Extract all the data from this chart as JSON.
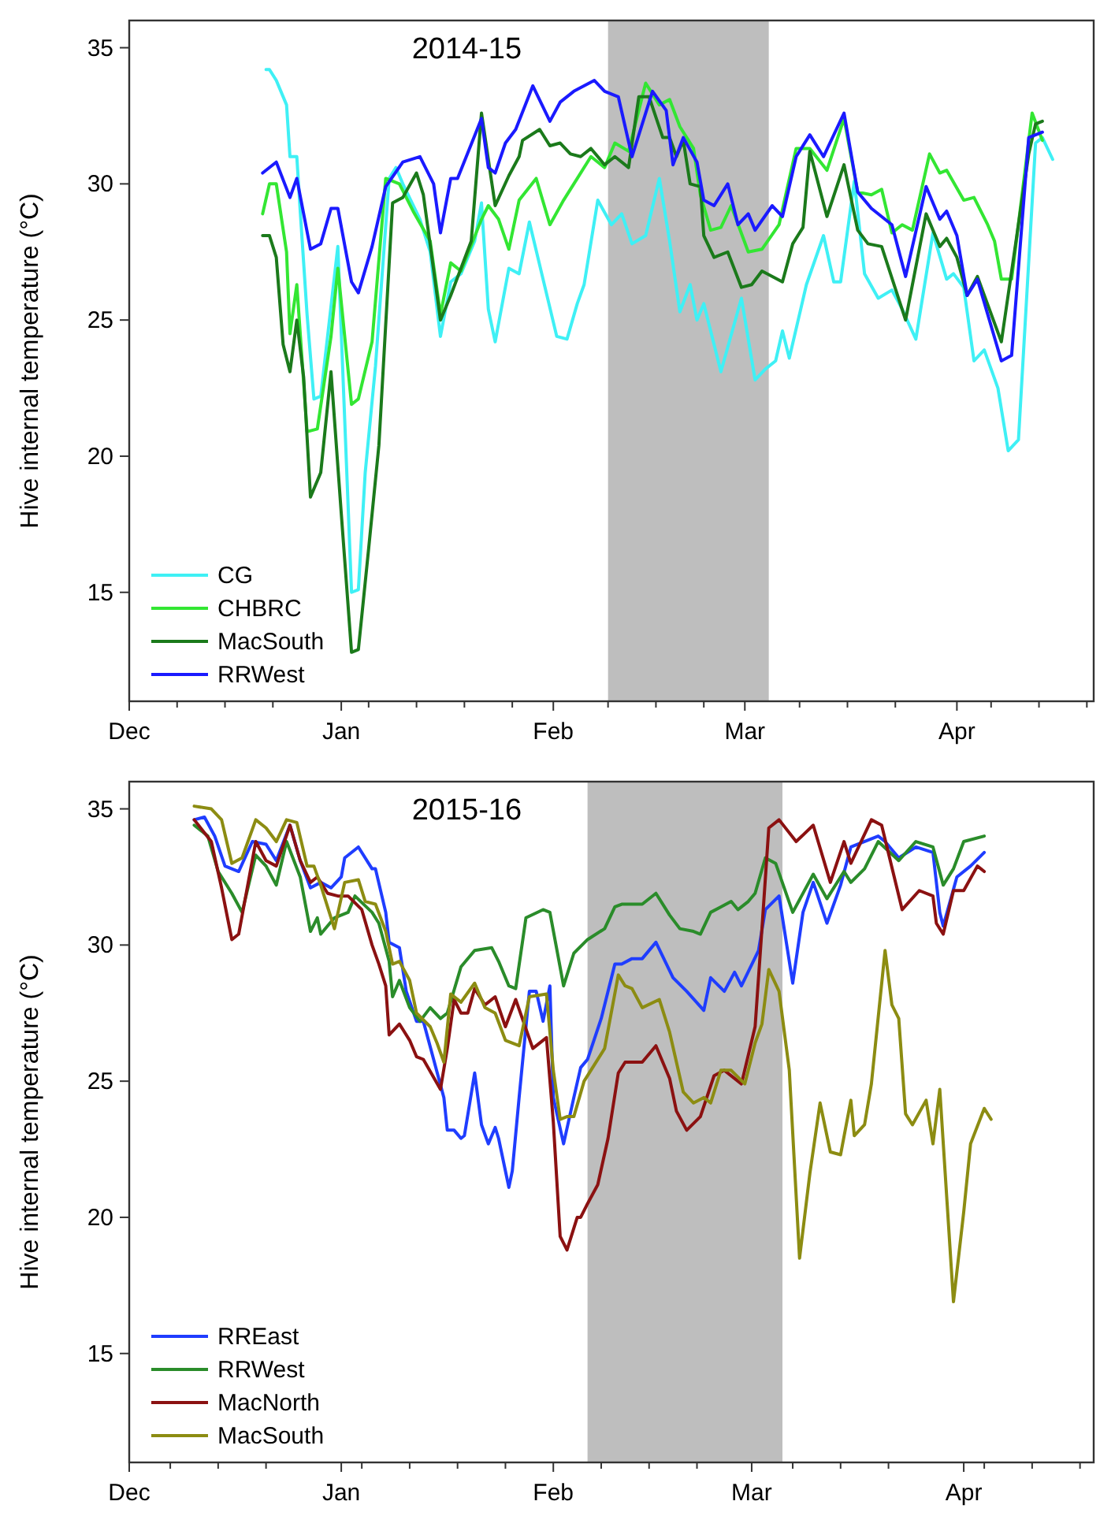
{
  "chart_data": [
    {
      "type": "line",
      "title": "2014-15",
      "ylabel": "Hive internal temperature (°C)",
      "xlim": [
        "2014-12-01",
        "2015-04-21"
      ],
      "ylim": [
        11,
        36
      ],
      "yticks": [
        15,
        20,
        25,
        30,
        35
      ],
      "xticks": [
        {
          "value": "2014-12-01",
          "label": "Dec"
        },
        {
          "value": "2014-12-08",
          "label": null
        },
        {
          "value": "2014-12-15",
          "label": null
        },
        {
          "value": "2014-12-22",
          "label": null
        },
        {
          "value": "2015-01-01",
          "label": "Jan"
        },
        {
          "value": "2015-01-05",
          "label": null
        },
        {
          "value": "2015-01-12",
          "label": null
        },
        {
          "value": "2015-01-19",
          "label": null
        },
        {
          "value": "2015-01-26",
          "label": null
        },
        {
          "value": "2015-02-01",
          "label": "Feb"
        },
        {
          "value": "2015-02-09",
          "label": null
        },
        {
          "value": "2015-02-16",
          "label": null
        },
        {
          "value": "2015-02-23",
          "label": null
        },
        {
          "value": "2015-03-01",
          "label": "Mar"
        },
        {
          "value": "2015-03-09",
          "label": null
        },
        {
          "value": "2015-03-16",
          "label": null
        },
        {
          "value": "2015-03-23",
          "label": null
        },
        {
          "value": "2015-04-01",
          "label": "Apr"
        },
        {
          "value": "2015-04-06",
          "label": null
        },
        {
          "value": "2015-04-13",
          "label": null
        },
        {
          "value": "2015-04-20",
          "label": null
        }
      ],
      "grid": false,
      "legend": "bottom left",
      "bands": [
        {
          "axis": "x",
          "from": "2015-02-09",
          "to": "2015-03-04T12:00",
          "color": "#bebebe"
        }
      ],
      "series": [
        {
          "name": "CG",
          "color": "#3ff0f5",
          "x": [
            "2014-12-21",
            "2014-12-21T12:00",
            "2014-12-22T12:00",
            "2014-12-24",
            "2014-12-24T12:00",
            "2014-12-25T12:00",
            "2014-12-26",
            "2014-12-27",
            "2014-12-28",
            "2014-12-29",
            "2014-12-31T12:00",
            "2015-01-02T12:00",
            "2015-01-03T12:00",
            "2015-01-04T12:00",
            "2015-01-06",
            "2015-01-08",
            "2015-01-09",
            "2015-01-10",
            "2015-01-12T12:00",
            "2015-01-14",
            "2015-01-15T12:00",
            "2015-01-17",
            "2015-01-18T12:00",
            "2015-01-20T12:00",
            "2015-01-21T12:00",
            "2015-01-22T12:00",
            "2015-01-23T12:00",
            "2015-01-25T12:00",
            "2015-01-27",
            "2015-01-28T12:00",
            "2015-02-01T12:00",
            "2015-02-03",
            "2015-02-04T12:00",
            "2015-02-05T12:00",
            "2015-02-07T12:00",
            "2015-02-09T12:00",
            "2015-02-11",
            "2015-02-12T12:00",
            "2015-02-14T12:00",
            "2015-02-16T12:00",
            "2015-02-18",
            "2015-02-19T12:00",
            "2015-02-21",
            "2015-02-22",
            "2015-02-23",
            "2015-02-25T12:00",
            "2015-02-28T12:00",
            "2015-03-02T12:00",
            "2015-03-04",
            "2015-03-05T12:00",
            "2015-03-06T12:00",
            "2015-03-07T12:00",
            "2015-03-10",
            "2015-03-12T12:00",
            "2015-03-14",
            "2015-03-15",
            "2015-03-17",
            "2015-03-18T12:00",
            "2015-03-20T12:00",
            "2015-03-22T12:00",
            "2015-03-24",
            "2015-03-26",
            "2015-03-28T12:00",
            "2015-03-30T12:00",
            "2015-03-31T12:00",
            "2015-04-02",
            "2015-04-03T12:00",
            "2015-04-05",
            "2015-04-07",
            "2015-04-08T12:00",
            "2015-04-10",
            "2015-04-12T12:00",
            "2015-04-13T12:00",
            "2015-04-15"
          ],
          "values": [
            34.2,
            34.2,
            33.8,
            32.9,
            31.0,
            31.0,
            29.0,
            25.2,
            22.1,
            22.2,
            27.7,
            15.0,
            15.1,
            19.4,
            23.3,
            30.2,
            30.6,
            30.0,
            28.7,
            27.5,
            24.4,
            26.4,
            26.7,
            27.9,
            29.3,
            25.4,
            24.2,
            26.9,
            26.7,
            28.6,
            24.4,
            24.3,
            25.6,
            26.3,
            29.4,
            28.5,
            28.9,
            27.8,
            28.1,
            30.2,
            27.9,
            25.3,
            26.3,
            25.0,
            25.6,
            23.1,
            25.8,
            22.8,
            23.2,
            23.5,
            24.6,
            23.6,
            26.3,
            28.1,
            26.4,
            26.4,
            30.1,
            26.7,
            25.8,
            26.1,
            25.4,
            24.3,
            28.2,
            26.5,
            26.7,
            26.2,
            23.5,
            23.9,
            22.5,
            20.2,
            20.6,
            31.5,
            31.7,
            30.9
          ]
        },
        {
          "name": "CHBRC",
          "color": "#33e633",
          "x": [
            "2014-12-20T12:00",
            "2014-12-21T12:00",
            "2014-12-22T12:00",
            "2014-12-24",
            "2014-12-24T12:00",
            "2014-12-25T12:00",
            "2014-12-27",
            "2014-12-28T12:00",
            "2014-12-30T12:00",
            "2014-12-31T12:00",
            "2015-01-02T12:00",
            "2015-01-03T12:00",
            "2015-01-05T12:00",
            "2015-01-07T12:00",
            "2015-01-09T12:00",
            "2015-01-11T12:00",
            "2015-01-14",
            "2015-01-15T12:00",
            "2015-01-17",
            "2015-01-18T12:00",
            "2015-01-21T12:00",
            "2015-01-22T12:00",
            "2015-01-24",
            "2015-01-25T12:00",
            "2015-01-27",
            "2015-01-29T12:00",
            "2015-01-31T12:00",
            "2015-02-02T12:00",
            "2015-02-04",
            "2015-02-06T12:00",
            "2015-02-08T12:00",
            "2015-02-10",
            "2015-02-12",
            "2015-02-14T12:00",
            "2015-02-16T12:00",
            "2015-02-18",
            "2015-02-19T12:00",
            "2015-02-21T12:00",
            "2015-02-22T12:00",
            "2015-02-24",
            "2015-02-25T12:00",
            "2015-02-27",
            "2015-03-01T12:00",
            "2015-03-03T12:00",
            "2015-03-06",
            "2015-03-08T12:00",
            "2015-03-10T12:00",
            "2015-03-13",
            "2015-03-15T12:00",
            "2015-03-17T12:00",
            "2015-03-19T12:00",
            "2015-03-21",
            "2015-03-22T12:00",
            "2015-03-24",
            "2015-03-25T12:00",
            "2015-03-28",
            "2015-03-29T12:00",
            "2015-03-30T12:00",
            "2015-04-02",
            "2015-04-03T12:00",
            "2015-04-05T12:00",
            "2015-04-06T12:00",
            "2015-04-07T12:00",
            "2015-04-09",
            "2015-04-12",
            "2015-04-13T12:00"
          ],
          "values": [
            28.9,
            30.0,
            30.0,
            27.5,
            24.5,
            26.3,
            20.9,
            21.0,
            24.4,
            26.9,
            21.9,
            22.1,
            24.2,
            30.2,
            30.0,
            29.0,
            27.9,
            25.2,
            27.1,
            26.8,
            28.7,
            29.2,
            28.7,
            27.6,
            29.4,
            30.2,
            28.5,
            29.4,
            30.0,
            31.0,
            30.6,
            31.5,
            31.2,
            33.7,
            32.9,
            33.1,
            32.1,
            31.3,
            29.6,
            28.3,
            28.4,
            29.2,
            27.5,
            27.6,
            28.5,
            31.3,
            31.3,
            30.5,
            32.4,
            29.7,
            29.6,
            29.8,
            28.2,
            28.5,
            28.3,
            31.1,
            30.4,
            30.5,
            29.4,
            29.5,
            28.5,
            27.9,
            26.5,
            26.5,
            32.6,
            31.6
          ]
        },
        {
          "name": "MacSouth",
          "color": "#1b7a1b",
          "x": [
            "2014-12-20T12:00",
            "2014-12-21T12:00",
            "2014-12-22T12:00",
            "2014-12-23T12:00",
            "2014-12-24T12:00",
            "2014-12-25T12:00",
            "2014-12-26T12:00",
            "2014-12-27T12:00",
            "2014-12-29",
            "2014-12-30T12:00",
            "2015-01-01",
            "2015-01-02T12:00",
            "2015-01-03T12:00",
            "2015-01-05",
            "2015-01-06T12:00",
            "2015-01-08T12:00",
            "2015-01-10",
            "2015-01-12",
            "2015-01-13",
            "2015-01-15T12:00",
            "2015-01-17",
            "2015-01-20",
            "2015-01-21T12:00",
            "2015-01-23T12:00",
            "2015-01-25T12:00",
            "2015-01-27",
            "2015-01-27T12:00",
            "2015-01-30",
            "2015-01-31T12:00",
            "2015-02-02",
            "2015-02-03T12:00",
            "2015-02-05",
            "2015-02-06T12:00",
            "2015-02-08T12:00",
            "2015-02-10",
            "2015-02-12",
            "2015-02-13T12:00",
            "2015-02-15",
            "2015-02-17",
            "2015-02-18",
            "2015-02-19",
            "2015-02-20",
            "2015-02-21",
            "2015-02-22T12:00",
            "2015-02-23",
            "2015-02-24T12:00",
            "2015-02-26T12:00",
            "2015-02-28T12:00",
            "2015-03-02",
            "2015-03-03T12:00",
            "2015-03-06T12:00",
            "2015-03-08",
            "2015-03-09T12:00",
            "2015-03-10T12:00",
            "2015-03-13",
            "2015-03-15T12:00",
            "2015-03-17T12:00",
            "2015-03-19",
            "2015-03-21",
            "2015-03-24T12:00",
            "2015-03-27T12:00",
            "2015-03-29T12:00",
            "2015-03-30T12:00",
            "2015-04-01",
            "2015-04-02T12:00",
            "2015-04-04",
            "2015-04-07T12:00",
            "2015-04-11T12:00",
            "2015-04-12T12:00",
            "2015-04-13T12:00"
          ],
          "values": [
            28.1,
            28.1,
            27.3,
            24.1,
            23.1,
            25.0,
            22.9,
            18.5,
            19.4,
            23.1,
            17.9,
            12.8,
            12.9,
            16.6,
            20.4,
            29.3,
            29.5,
            30.4,
            29.6,
            25.0,
            25.9,
            27.9,
            32.6,
            29.2,
            30.3,
            31.0,
            31.6,
            32.0,
            31.4,
            31.5,
            31.1,
            31.0,
            31.3,
            30.7,
            31.0,
            30.6,
            33.2,
            33.2,
            31.7,
            31.7,
            31.0,
            31.6,
            30.0,
            29.9,
            28.1,
            27.3,
            27.5,
            26.2,
            26.3,
            26.8,
            26.4,
            27.8,
            28.4,
            31.2,
            28.8,
            30.7,
            28.3,
            27.8,
            27.7,
            25.0,
            28.9,
            27.7,
            28.0,
            27.3,
            25.9,
            26.6,
            24.2,
            31.1,
            32.2,
            32.3
          ]
        },
        {
          "name": "RRWest",
          "color": "#1a1aff",
          "x": [
            "2014-12-20T12:00",
            "2014-12-22T12:00",
            "2014-12-24T12:00",
            "2014-12-25T12:00",
            "2014-12-27T12:00",
            "2014-12-29",
            "2014-12-30T12:00",
            "2014-12-31T12:00",
            "2015-01-02T12:00",
            "2015-01-03T12:00",
            "2015-01-05T12:00",
            "2015-01-07T12:00",
            "2015-01-10",
            "2015-01-12T12:00",
            "2015-01-14T12:00",
            "2015-01-15T12:00",
            "2015-01-17",
            "2015-01-18",
            "2015-01-21T12:00",
            "2015-01-22T12:00",
            "2015-01-23T12:00",
            "2015-01-25",
            "2015-01-26T12:00",
            "2015-01-29",
            "2015-01-31T12:00",
            "2015-02-02",
            "2015-02-04",
            "2015-02-07",
            "2015-02-08T12:00",
            "2015-02-10T12:00",
            "2015-02-12T12:00",
            "2015-02-15T12:00",
            "2015-02-17T12:00",
            "2015-02-18T12:00",
            "2015-02-20",
            "2015-02-22",
            "2015-02-23",
            "2015-02-24T12:00",
            "2015-02-26T12:00",
            "2015-02-28",
            "2015-03-01T12:00",
            "2015-03-02T12:00",
            "2015-03-05",
            "2015-03-06T12:00",
            "2015-03-08T12:00",
            "2015-03-10T12:00",
            "2015-03-12T12:00",
            "2015-03-15T12:00",
            "2015-03-17T12:00",
            "2015-03-19T12:00",
            "2015-03-22T12:00",
            "2015-03-24T12:00",
            "2015-03-27T12:00",
            "2015-03-29T12:00",
            "2015-03-30T12:00",
            "2015-04-01",
            "2015-04-02T12:00",
            "2015-04-04",
            "2015-04-07T12:00",
            "2015-04-09",
            "2015-04-11T12:00",
            "2015-04-13T12:00"
          ],
          "values": [
            30.4,
            30.8,
            29.5,
            30.2,
            27.6,
            27.8,
            29.1,
            29.1,
            26.4,
            26.0,
            27.7,
            29.9,
            30.8,
            31.0,
            30.0,
            28.2,
            30.2,
            30.2,
            32.4,
            30.6,
            30.4,
            31.5,
            32.0,
            33.6,
            32.3,
            33.0,
            33.4,
            33.8,
            33.4,
            33.2,
            31.0,
            33.4,
            32.7,
            30.7,
            31.7,
            30.8,
            29.4,
            29.2,
            30.0,
            28.5,
            28.9,
            28.3,
            29.2,
            28.8,
            31.0,
            31.8,
            31.0,
            32.6,
            29.7,
            29.1,
            28.5,
            26.6,
            29.9,
            28.7,
            29.0,
            28.1,
            25.9,
            26.5,
            23.5,
            23.7,
            31.7,
            31.9
          ]
        }
      ]
    },
    {
      "type": "line",
      "title": "2015-16",
      "ylabel": "Hive internal temperature (°C)",
      "xlim": [
        "2015-12-01",
        "2016-04-20"
      ],
      "ylim": [
        11,
        36
      ],
      "yticks": [
        15,
        20,
        25,
        30,
        35
      ],
      "xticks": [
        {
          "value": "2015-12-01",
          "label": "Dec"
        },
        {
          "value": "2015-12-07",
          "label": null
        },
        {
          "value": "2015-12-14",
          "label": null
        },
        {
          "value": "2015-12-21",
          "label": null
        },
        {
          "value": "2016-01-01",
          "label": "Jan"
        },
        {
          "value": "2016-01-04",
          "label": null
        },
        {
          "value": "2016-01-11",
          "label": null
        },
        {
          "value": "2016-01-18",
          "label": null
        },
        {
          "value": "2016-01-25",
          "label": null
        },
        {
          "value": "2016-02-01",
          "label": "Feb"
        },
        {
          "value": "2016-02-08",
          "label": null
        },
        {
          "value": "2016-02-15",
          "label": null
        },
        {
          "value": "2016-02-22",
          "label": null
        },
        {
          "value": "2016-03-01",
          "label": "Mar"
        },
        {
          "value": "2016-03-07",
          "label": null
        },
        {
          "value": "2016-03-14",
          "label": null
        },
        {
          "value": "2016-03-21",
          "label": null
        },
        {
          "value": "2016-04-01",
          "label": "Apr"
        },
        {
          "value": "2016-04-04",
          "label": null
        },
        {
          "value": "2016-04-11",
          "label": null
        },
        {
          "value": "2016-04-18",
          "label": null
        }
      ],
      "grid": false,
      "legend": "bottom left",
      "bands": [
        {
          "axis": "x",
          "from": "2016-02-06",
          "to": "2016-03-05T12:00",
          "color": "#bebebe"
        }
      ],
      "series": [
        {
          "name": "RREast",
          "color": "#1f3dff",
          "x": [
            "2015-12-10T12:00",
            "2015-12-12",
            "2015-12-13T12:00",
            "2015-12-15",
            "2015-12-17",
            "2015-12-19",
            "2015-12-21",
            "2015-12-22T12:00",
            "2015-12-24T12:00",
            "2015-12-26",
            "2015-12-27T12:00",
            "2015-12-29",
            "2015-12-30T12:00",
            "2016-01-01",
            "2016-01-01T12:00",
            "2016-01-03T12:00",
            "2016-01-05T12:00",
            "2016-01-06",
            "2016-01-07T12:00",
            "2016-01-08",
            "2016-01-09T12:00",
            "2016-01-10T12:00",
            "2016-01-12",
            "2016-01-13",
            "2016-01-14T12:00",
            "2016-01-16",
            "2016-01-16T12:00",
            "2016-01-17T12:00",
            "2016-01-18T12:00",
            "2016-01-19",
            "2016-01-20T12:00",
            "2016-01-21T12:00",
            "2016-01-22T12:00",
            "2016-01-23T12:00",
            "2016-01-24",
            "2016-01-25T12:00",
            "2016-01-26",
            "2016-01-27",
            "2016-01-28T12:00",
            "2016-01-29T12:00",
            "2016-01-30T12:00",
            "2016-01-31T12:00",
            "2016-02-01",
            "2016-02-02T12:00",
            "2016-02-04",
            "2016-02-05",
            "2016-02-06",
            "2016-02-08",
            "2016-02-10",
            "2016-02-11",
            "2016-02-12T12:00",
            "2016-02-14",
            "2016-02-16",
            "2016-02-18T12:00",
            "2016-02-20T12:00",
            "2016-02-23",
            "2016-02-24",
            "2016-02-26",
            "2016-02-27T12:00",
            "2016-02-28T12:00",
            "2016-03-02",
            "2016-03-03",
            "2016-03-05",
            "2016-03-07",
            "2016-03-08T12:00",
            "2016-03-10",
            "2016-03-12",
            "2016-03-14",
            "2016-03-15T12:00",
            "2016-03-19T12:00",
            "2016-03-20T12:00",
            "2016-03-22T12:00",
            "2016-03-25",
            "2016-03-27T12:00",
            "2016-03-28T12:00",
            "2016-03-29",
            "2016-03-31",
            "2016-04-02",
            "2016-04-04"
          ],
          "values": [
            34.6,
            34.7,
            34.0,
            32.9,
            32.7,
            33.8,
            33.7,
            33.1,
            34.4,
            33.1,
            32.1,
            32.3,
            32.1,
            32.5,
            33.2,
            33.6,
            32.8,
            32.8,
            31.2,
            30.1,
            29.9,
            28.3,
            27.2,
            27.2,
            25.8,
            24.4,
            23.2,
            23.2,
            22.9,
            23.0,
            25.3,
            23.4,
            22.7,
            23.3,
            22.9,
            21.1,
            21.7,
            24.4,
            28.3,
            28.3,
            27.2,
            28.5,
            24.4,
            22.7,
            24.4,
            25.5,
            25.8,
            27.3,
            29.3,
            29.3,
            29.5,
            29.5,
            30.1,
            28.8,
            28.3,
            27.6,
            28.8,
            28.3,
            29.0,
            28.5,
            29.8,
            31.3,
            31.8,
            28.6,
            31.2,
            32.3,
            30.8,
            32.2,
            33.6,
            34.0,
            33.8,
            33.2,
            33.6,
            33.4,
            31.2,
            30.7,
            32.5,
            32.9,
            33.4
          ]
        },
        {
          "name": "RRWest",
          "color": "#2a8c2a",
          "x": [
            "2015-12-10T12:00",
            "2015-12-12T12:00",
            "2015-12-14",
            "2015-12-16",
            "2015-12-17T12:00",
            "2015-12-19T12:00",
            "2015-12-21",
            "2015-12-22T12:00",
            "2015-12-24",
            "2015-12-26",
            "2015-12-27T12:00",
            "2015-12-28T12:00",
            "2015-12-29",
            "2015-12-31",
            "2016-01-02",
            "2016-01-03",
            "2016-01-05T12:00",
            "2016-01-06T12:00",
            "2016-01-08",
            "2016-01-08T12:00",
            "2016-01-09T12:00",
            "2016-01-11",
            "2016-01-12T12:00",
            "2016-01-14",
            "2016-01-15T12:00",
            "2016-01-16T12:00",
            "2016-01-18T12:00",
            "2016-01-20T12:00",
            "2016-01-23",
            "2016-01-24",
            "2016-01-25T12:00",
            "2016-01-26T12:00",
            "2016-01-28",
            "2016-01-30T12:00",
            "2016-01-31T12:00",
            "2016-02-02T12:00",
            "2016-02-04",
            "2016-02-06",
            "2016-02-08T12:00",
            "2016-02-10",
            "2016-02-11",
            "2016-02-14",
            "2016-02-16",
            "2016-02-18",
            "2016-02-19T12:00",
            "2016-02-21T12:00",
            "2016-02-22T12:00",
            "2016-02-24",
            "2016-02-25T12:00",
            "2016-02-27",
            "2016-02-28",
            "2016-02-29T12:00",
            "2016-03-01T12:00",
            "2016-03-03",
            "2016-03-04T12:00",
            "2016-03-07",
            "2016-03-10",
            "2016-03-12",
            "2016-03-14T12:00",
            "2016-03-15T12:00",
            "2016-03-17T12:00",
            "2016-03-19T12:00",
            "2016-03-22T12:00",
            "2016-03-25",
            "2016-03-27T12:00",
            "2016-03-29",
            "2016-03-30T12:00",
            "2016-04-01",
            "2016-04-04"
          ],
          "values": [
            34.4,
            34.0,
            32.7,
            31.9,
            31.2,
            33.3,
            32.9,
            32.2,
            33.8,
            32.5,
            30.5,
            31.0,
            30.4,
            31.0,
            31.2,
            31.8,
            31.2,
            30.8,
            29.4,
            28.1,
            28.7,
            27.7,
            27.2,
            27.7,
            27.3,
            27.5,
            29.2,
            29.8,
            29.9,
            29.4,
            28.5,
            28.4,
            31.0,
            31.3,
            31.2,
            28.5,
            29.7,
            30.2,
            30.6,
            31.4,
            31.5,
            31.5,
            31.9,
            31.1,
            30.6,
            30.5,
            30.4,
            31.2,
            31.4,
            31.6,
            31.3,
            31.6,
            31.9,
            33.2,
            33.0,
            31.2,
            32.6,
            31.7,
            32.7,
            32.3,
            32.8,
            33.8,
            33.1,
            33.8,
            33.6,
            32.2,
            32.8,
            33.8,
            34.0
          ]
        },
        {
          "name": "MacNorth",
          "color": "#8b1111",
          "x": [
            "2015-12-10T12:00",
            "2015-12-13",
            "2015-12-14T12:00",
            "2015-12-16",
            "2015-12-17",
            "2015-12-19T12:00",
            "2015-12-21",
            "2015-12-22T12:00",
            "2015-12-24T12:00",
            "2015-12-26",
            "2015-12-27T12:00",
            "2015-12-28T12:00",
            "2015-12-30",
            "2015-12-31T12:00",
            "2016-01-02",
            "2016-01-04",
            "2016-01-05T12:00",
            "2016-01-06T12:00",
            "2016-01-07T12:00",
            "2016-01-08",
            "2016-01-09T12:00",
            "2016-01-11",
            "2016-01-12",
            "2016-01-13",
            "2016-01-15T12:00",
            "2016-01-16T12:00",
            "2016-01-17T12:00",
            "2016-01-18T12:00",
            "2016-01-19T12:00",
            "2016-01-20T12:00",
            "2016-01-22",
            "2016-01-23T12:00",
            "2016-01-25",
            "2016-01-26T12:00",
            "2016-01-29",
            "2016-01-31",
            "2016-02-01",
            "2016-02-02",
            "2016-02-03",
            "2016-02-04T12:00",
            "2016-02-05",
            "2016-02-06",
            "2016-02-07T12:00",
            "2016-02-09",
            "2016-02-10T12:00",
            "2016-02-11T12:00",
            "2016-02-14",
            "2016-02-16",
            "2016-02-18",
            "2016-02-19",
            "2016-02-20T12:00",
            "2016-02-22T12:00",
            "2016-02-24T12:00",
            "2016-02-26",
            "2016-02-28T12:00",
            "2016-03-01T12:00",
            "2016-03-02T12:00",
            "2016-03-03T12:00",
            "2016-03-05",
            "2016-03-07T12:00",
            "2016-03-10",
            "2016-03-12T12:00",
            "2016-03-14T12:00",
            "2016-03-15T12:00",
            "2016-03-18T12:00",
            "2016-03-20",
            "2016-03-23",
            "2016-03-25T12:00",
            "2016-03-27T12:00",
            "2016-03-28",
            "2016-03-29",
            "2016-03-30T12:00",
            "2016-04-01",
            "2016-04-03",
            "2016-04-04"
          ],
          "values": [
            34.6,
            33.8,
            32.1,
            30.2,
            30.4,
            33.8,
            33.1,
            32.9,
            34.4,
            33.1,
            32.3,
            32.5,
            31.9,
            31.8,
            31.8,
            31.3,
            30.0,
            29.3,
            28.5,
            26.7,
            27.1,
            26.5,
            25.9,
            25.8,
            24.7,
            26.2,
            28.0,
            27.5,
            27.5,
            28.4,
            27.8,
            28.1,
            27.0,
            28.0,
            26.2,
            26.6,
            23.5,
            19.3,
            18.8,
            20.0,
            20.0,
            20.5,
            21.2,
            22.9,
            25.3,
            25.7,
            25.7,
            26.3,
            25.1,
            23.9,
            23.2,
            23.7,
            25.2,
            25.4,
            24.9,
            27.0,
            30.6,
            34.3,
            34.6,
            33.8,
            34.4,
            32.3,
            33.8,
            33.0,
            34.6,
            34.4,
            31.3,
            32.0,
            31.8,
            30.8,
            30.4,
            32.0,
            32.0,
            32.9,
            32.7
          ]
        },
        {
          "name": "MacSouth",
          "color": "#8c8c12",
          "x": [
            "2015-12-10T12:00",
            "2015-12-13",
            "2015-12-14T12:00",
            "2015-12-16",
            "2015-12-17T12:00",
            "2015-12-19T12:00",
            "2015-12-21",
            "2015-12-22T12:00",
            "2015-12-24",
            "2015-12-25T12:00",
            "2015-12-27",
            "2015-12-28",
            "2015-12-29",
            "2015-12-31",
            "2016-01-01T12:00",
            "2016-01-03T12:00",
            "2016-01-04T12:00",
            "2016-01-06",
            "2016-01-07T12:00",
            "2016-01-08T12:00",
            "2016-01-09T12:00",
            "2016-01-11",
            "2016-01-12",
            "2016-01-14",
            "2016-01-15",
            "2016-01-16",
            "2016-01-17",
            "2016-01-18T12:00",
            "2016-01-20T12:00",
            "2016-01-22",
            "2016-01-23T12:00",
            "2016-01-25",
            "2016-01-27",
            "2016-01-28T12:00",
            "2016-01-31",
            "2016-02-01",
            "2016-02-02",
            "2016-02-03",
            "2016-02-04",
            "2016-02-05T12:00",
            "2016-02-07",
            "2016-02-08T12:00",
            "2016-02-10T12:00",
            "2016-02-11T12:00",
            "2016-02-12T12:00",
            "2016-02-14",
            "2016-02-16T12:00",
            "2016-02-18",
            "2016-02-20",
            "2016-02-21T12:00",
            "2016-02-23",
            "2016-02-24",
            "2016-02-25T12:00",
            "2016-02-27",
            "2016-02-29",
            "2016-03-01T12:00",
            "2016-03-02T12:00",
            "2016-03-03T12:00",
            "2016-03-05",
            "2016-03-06T12:00",
            "2016-03-08",
            "2016-03-09T12:00",
            "2016-03-11",
            "2016-03-12T12:00",
            "2016-03-14",
            "2016-03-15T12:00",
            "2016-03-16",
            "2016-03-17T12:00",
            "2016-03-18T12:00",
            "2016-03-20T12:00",
            "2016-03-21T12:00",
            "2016-03-22T12:00",
            "2016-03-23T12:00",
            "2016-03-24T12:00",
            "2016-03-26T12:00",
            "2016-03-27T12:00",
            "2016-03-28T12:00",
            "2016-03-30T12:00",
            "2016-04-01",
            "2016-04-02",
            "2016-04-04",
            "2016-04-05"
          ],
          "values": [
            35.1,
            35.0,
            34.6,
            33.0,
            33.2,
            34.6,
            34.3,
            33.8,
            34.6,
            34.5,
            32.9,
            32.9,
            32.2,
            30.6,
            32.3,
            32.4,
            31.6,
            31.5,
            30.5,
            29.3,
            29.4,
            28.7,
            27.5,
            27.0,
            26.4,
            25.7,
            28.2,
            27.9,
            28.6,
            27.7,
            27.5,
            26.5,
            26.3,
            28.1,
            28.2,
            25.4,
            23.6,
            23.7,
            23.7,
            25.0,
            25.6,
            26.2,
            28.9,
            28.5,
            28.4,
            27.7,
            28.0,
            26.8,
            24.6,
            24.2,
            24.4,
            24.2,
            25.4,
            25.4,
            24.9,
            26.4,
            27.1,
            29.1,
            28.3,
            25.4,
            18.5,
            21.6,
            24.2,
            22.4,
            22.3,
            24.3,
            23.0,
            23.4,
            24.9,
            29.8,
            27.8,
            27.3,
            23.8,
            23.4,
            24.3,
            22.7,
            24.7,
            16.9,
            20.2,
            22.7,
            24.0,
            23.6
          ]
        }
      ]
    }
  ]
}
